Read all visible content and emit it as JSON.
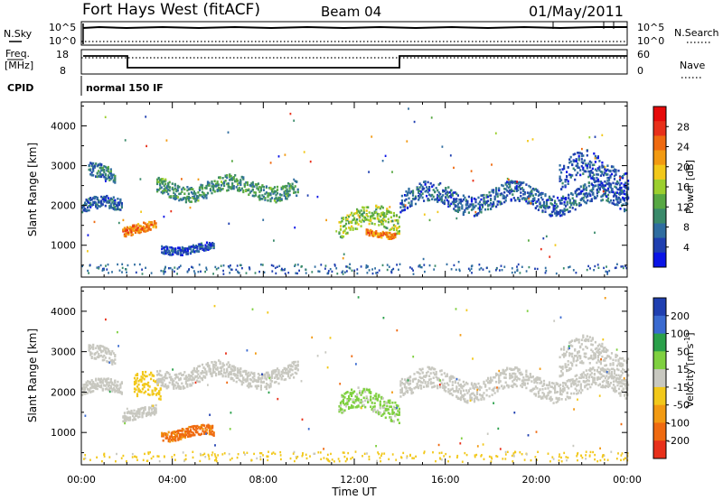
{
  "header": {
    "station": "Fort Hays West (fitACF)",
    "beam": "Beam 04",
    "date": "01/May/2011"
  },
  "status_panels": {
    "nsky_label": "N.Sky",
    "nsearch_label": "N.Search",
    "noise_ticks": [
      "10^5",
      "10^0"
    ],
    "freq_label_1": "Freq.",
    "freq_label_2": "[MHz]",
    "freq_ticks": [
      "18",
      "8"
    ],
    "nave_label": "Nave",
    "nave_ticks": [
      "60",
      "0"
    ],
    "cpid_label": "CPID",
    "cpid_value": "normal 150 IF"
  },
  "colors": {
    "power": [
      "#0a14e6",
      "#1f3fb0",
      "#2f6da0",
      "#3a8a6a",
      "#57a843",
      "#9ccf2e",
      "#f2c81a",
      "#f29a12",
      "#ef6a10",
      "#e8301a",
      "#e60a0a"
    ],
    "velocity": [
      "#1f3fb0",
      "#3a6ad0",
      "#2aa04a",
      "#7fd040",
      "#c8c8c0",
      "#f2c81a",
      "#f29a12",
      "#ef6a10",
      "#e8301a"
    ]
  },
  "chart_data": [
    {
      "type": "heatmap",
      "title": "Power",
      "xlabel": "Time UT",
      "ylabel": "Slant Range [km]",
      "xlim": [
        0,
        24
      ],
      "ylim": [
        200,
        4600
      ],
      "x_ticks": [
        "00:00",
        "04:00",
        "08:00",
        "12:00",
        "16:00",
        "20:00",
        "00:00"
      ],
      "y_ticks": [
        "1000",
        "2000",
        "3000",
        "4000"
      ],
      "colorbar": {
        "label": "Power [dB]",
        "ticks": [
          "4",
          "8",
          "12",
          "16",
          "20",
          "24",
          "28"
        ],
        "range": [
          0,
          30
        ]
      },
      "features": [
        {
          "t_start": 0.0,
          "t_end": 1.8,
          "range_km": 2000,
          "width_km": 300,
          "value": 6
        },
        {
          "t_start": 0.3,
          "t_end": 1.5,
          "range_km": 2800,
          "width_km": 350,
          "value": 8
        },
        {
          "t_start": 1.8,
          "t_end": 3.3,
          "range_km": 1450,
          "width_km": 250,
          "value": 22
        },
        {
          "t_start": 3.3,
          "t_end": 9.5,
          "range_km": 2450,
          "width_km": 400,
          "value": 10
        },
        {
          "t_start": 3.5,
          "t_end": 5.8,
          "range_km": 950,
          "width_km": 200,
          "value": 5
        },
        {
          "t_start": 11.3,
          "t_end": 14.0,
          "range_km": 1600,
          "width_km": 500,
          "value": 14
        },
        {
          "t_start": 12.5,
          "t_end": 13.8,
          "range_km": 1300,
          "width_km": 150,
          "value": 22
        },
        {
          "t_start": 14.0,
          "t_end": 24.0,
          "range_km": 2200,
          "width_km": 500,
          "value": 6
        },
        {
          "t_start": 21.0,
          "t_end": 24.0,
          "range_km": 2800,
          "width_km": 700,
          "value": 5
        }
      ]
    },
    {
      "type": "heatmap",
      "title": "Velocity",
      "xlabel": "Time UT",
      "ylabel": "Slant Range [km]",
      "xlim": [
        0,
        24
      ],
      "ylim": [
        200,
        4600
      ],
      "x_ticks": [
        "00:00",
        "04:00",
        "08:00",
        "12:00",
        "16:00",
        "20:00",
        "00:00"
      ],
      "y_ticks": [
        "1000",
        "2000",
        "3000",
        "4000"
      ],
      "colorbar": {
        "label": "Velocity [m s^-1]",
        "ticks": [
          "200",
          "100",
          "50",
          "15",
          "-15",
          "-50",
          "-100",
          "-200"
        ],
        "range": [
          -250,
          250
        ]
      },
      "features": [
        {
          "t_start": 0.0,
          "t_end": 1.8,
          "range_km": 2100,
          "width_km": 300,
          "value": 0
        },
        {
          "t_start": 0.3,
          "t_end": 1.5,
          "range_km": 2900,
          "width_km": 350,
          "value": 0
        },
        {
          "t_start": 1.8,
          "t_end": 3.3,
          "range_km": 1500,
          "width_km": 250,
          "value": 0
        },
        {
          "t_start": 2.3,
          "t_end": 3.5,
          "range_km": 2000,
          "width_km": 600,
          "value": -60
        },
        {
          "t_start": 3.3,
          "t_end": 9.5,
          "range_km": 2450,
          "width_km": 400,
          "value": 0
        },
        {
          "t_start": 3.5,
          "t_end": 5.8,
          "range_km": 1000,
          "width_km": 250,
          "value": -150
        },
        {
          "t_start": 11.3,
          "t_end": 14.0,
          "range_km": 1700,
          "width_km": 500,
          "value": 40
        },
        {
          "t_start": 14.0,
          "t_end": 24.0,
          "range_km": 2200,
          "width_km": 500,
          "value": 0
        },
        {
          "t_start": 21.0,
          "t_end": 24.0,
          "range_km": 2800,
          "width_km": 700,
          "value": 0
        }
      ]
    }
  ]
}
